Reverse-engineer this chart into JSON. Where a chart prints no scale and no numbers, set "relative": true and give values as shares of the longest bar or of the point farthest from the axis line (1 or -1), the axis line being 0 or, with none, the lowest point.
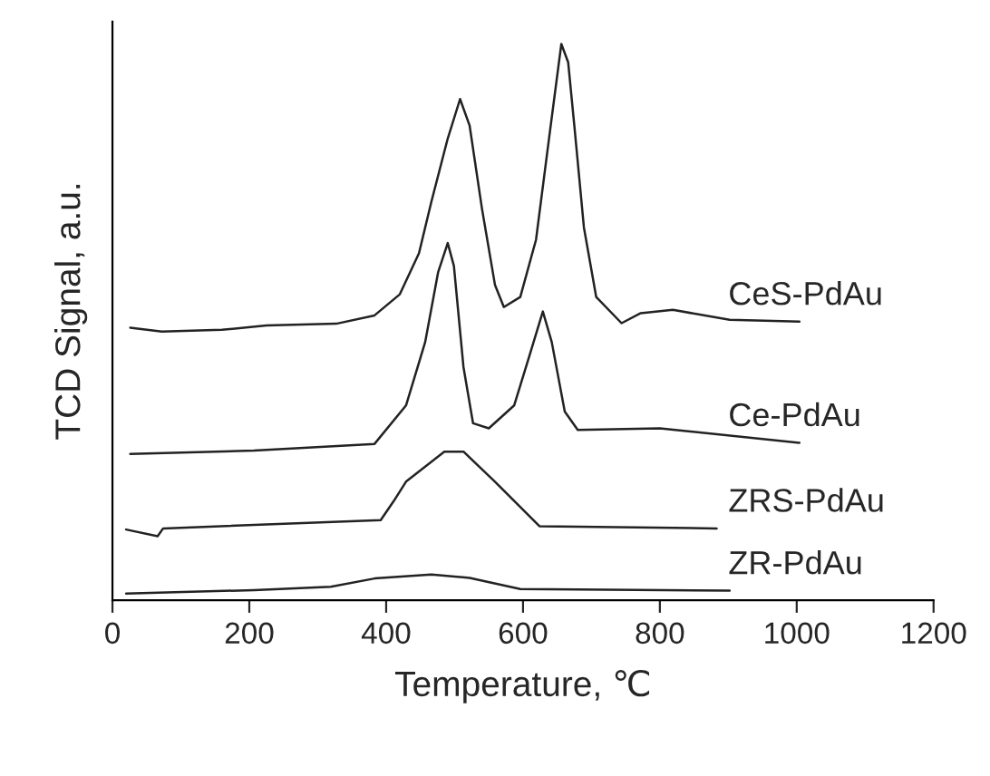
{
  "chart_data": {
    "type": "line",
    "relative": true,
    "xlabel": "Temperature, ℃",
    "ylabel": "TCD Signal, a.u.",
    "xlim": [
      0,
      1200
    ],
    "xticks": [
      0,
      200,
      400,
      600,
      800,
      1000,
      1200
    ],
    "tick_labels": "x",
    "legend": false,
    "grid": false,
    "marker": "none",
    "line_style": "solid",
    "series": [
      {
        "name": "CeS-PdAu",
        "color": "#222222",
        "x": [
          26,
          72,
          160,
          225,
          327,
          383,
          420,
          448,
          466,
          490,
          508,
          522,
          540,
          559,
          572,
          596,
          619,
          638,
          656,
          666,
          675,
          689,
          707,
          744,
          772,
          819,
          902,
          1004
        ],
        "values": [
          0.49,
          0.483,
          0.486,
          0.494,
          0.497,
          0.512,
          0.55,
          0.624,
          0.716,
          0.83,
          0.901,
          0.853,
          0.704,
          0.567,
          0.527,
          0.545,
          0.648,
          0.83,
          1,
          0.967,
          0.853,
          0.67,
          0.545,
          0.498,
          0.516,
          0.522,
          0.504,
          0.501
        ]
      },
      {
        "name": "Ce-PdAu",
        "color": "#222222",
        "x": [
          26,
          207,
          383,
          429,
          457,
          476,
          490,
          499,
          513,
          527,
          550,
          587,
          610,
          629,
          642,
          661,
          680,
          800,
          1004
        ],
        "values": [
          0.263,
          0.269,
          0.281,
          0.35,
          0.464,
          0.59,
          0.642,
          0.601,
          0.419,
          0.318,
          0.309,
          0.35,
          0.442,
          0.519,
          0.464,
          0.339,
          0.306,
          0.309,
          0.283
        ]
      },
      {
        "name": "ZRS-PdAu",
        "color": "#222222",
        "x": [
          20,
          66,
          74,
          392,
          411,
          429,
          485,
          513,
          559,
          624,
          883
        ],
        "values": [
          0.127,
          0.115,
          0.129,
          0.144,
          0.178,
          0.213,
          0.267,
          0.267,
          0.213,
          0.133,
          0.129
        ]
      },
      {
        "name": "ZR-PdAu",
        "color": "#222222",
        "x": [
          20,
          207,
          319,
          383,
          466,
          522,
          596,
          902
        ],
        "values": [
          0.012,
          0.018,
          0.024,
          0.039,
          0.046,
          0.04,
          0.02,
          0.017
        ]
      }
    ]
  }
}
